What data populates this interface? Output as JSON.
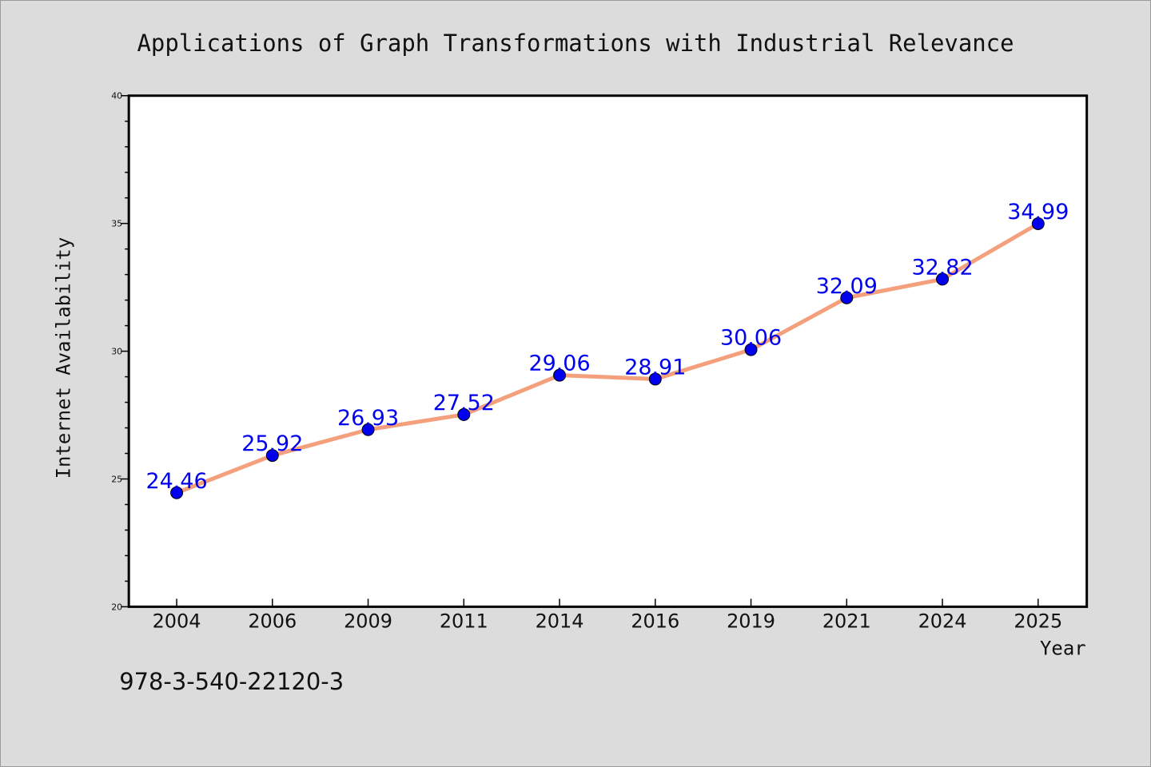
{
  "chart_data": {
    "type": "line",
    "title": "Applications of Graph Transformations with Industrial Relevance",
    "xlabel": "Year",
    "ylabel": "Internet Availability",
    "categories": [
      "2004",
      "2006",
      "2009",
      "2011",
      "2014",
      "2016",
      "2019",
      "2021",
      "2024",
      "2025"
    ],
    "series": [
      {
        "values": [
          24.46,
          25.92,
          26.93,
          27.52,
          29.06,
          28.91,
          30.06,
          32.09,
          32.82,
          34.99
        ],
        "labels": [
          "24.46",
          "25.92",
          "26.93",
          "27.52",
          "29.06",
          "28.91",
          "30.06",
          "32.09",
          "32.82",
          "34.99"
        ],
        "line_color": "#f4a07c",
        "marker_color": "#0000ee",
        "label_color": "#0000ee"
      }
    ],
    "ylim": [
      20,
      40
    ],
    "yticks": [
      "20",
      "25",
      "30",
      "35",
      "40"
    ],
    "grid": false,
    "footnote": "978-3-540-22120-3"
  }
}
